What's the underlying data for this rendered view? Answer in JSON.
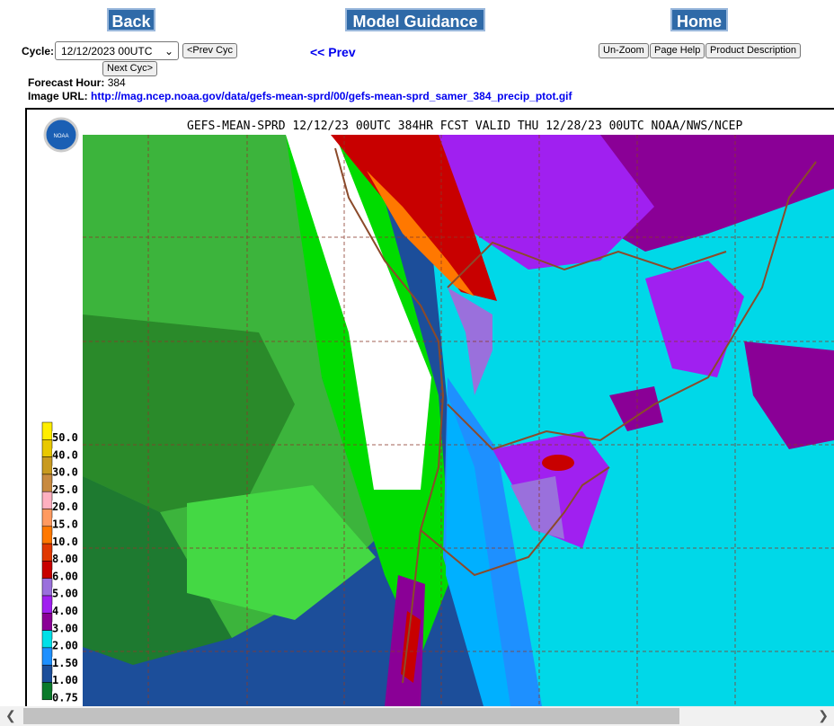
{
  "nav": {
    "back": "Back",
    "model_guidance": "Model Guidance",
    "home": "Home"
  },
  "cycle": {
    "label": "Cycle:",
    "selected": "12/12/2023 00UTC",
    "prev_cycle": "<Prev Cyc",
    "next_cycle": "Next Cyc>"
  },
  "prev_link": "<< Prev",
  "tools": [
    "Un-Zoom",
    "Page Help",
    "Product Description"
  ],
  "forecast_hour": {
    "label": "Forecast Hour:",
    "value": "384"
  },
  "image_url": {
    "label": "Image URL:",
    "value": "http://mag.ncep.noaa.gov/data/gefs-mean-sprd/00/gefs-mean-sprd_samer_384_precip_ptot.gif"
  },
  "map": {
    "title": "GEFS-MEAN-SPRD 12/12/23 00UTC 384HR FCST VALID THU 12/28/23 00UTC NOAA/NWS/NCEP",
    "legend": [
      {
        "label": "50.0",
        "color": "#ffee00"
      },
      {
        "label": "40.0",
        "color": "#e8c800"
      },
      {
        "label": "30.0",
        "color": "#c89a20"
      },
      {
        "label": "25.0",
        "color": "#c88a40"
      },
      {
        "label": "20.0",
        "color": "#ffb0c0"
      },
      {
        "label": "15.0",
        "color": "#ff9a60"
      },
      {
        "label": "10.0",
        "color": "#ff7800"
      },
      {
        "label": "8.00",
        "color": "#e03800"
      },
      {
        "label": "6.00",
        "color": "#c80000"
      },
      {
        "label": "5.00",
        "color": "#9a70dc"
      },
      {
        "label": "4.00",
        "color": "#a020f0"
      },
      {
        "label": "3.00",
        "color": "#8a0096"
      },
      {
        "label": "2.00",
        "color": "#00e0e8"
      },
      {
        "label": "1.50",
        "color": "#1e90ff"
      },
      {
        "label": "1.00",
        "color": "#1c4e9a"
      },
      {
        "label": "0.75",
        "color": "#0a7a2a"
      }
    ]
  }
}
